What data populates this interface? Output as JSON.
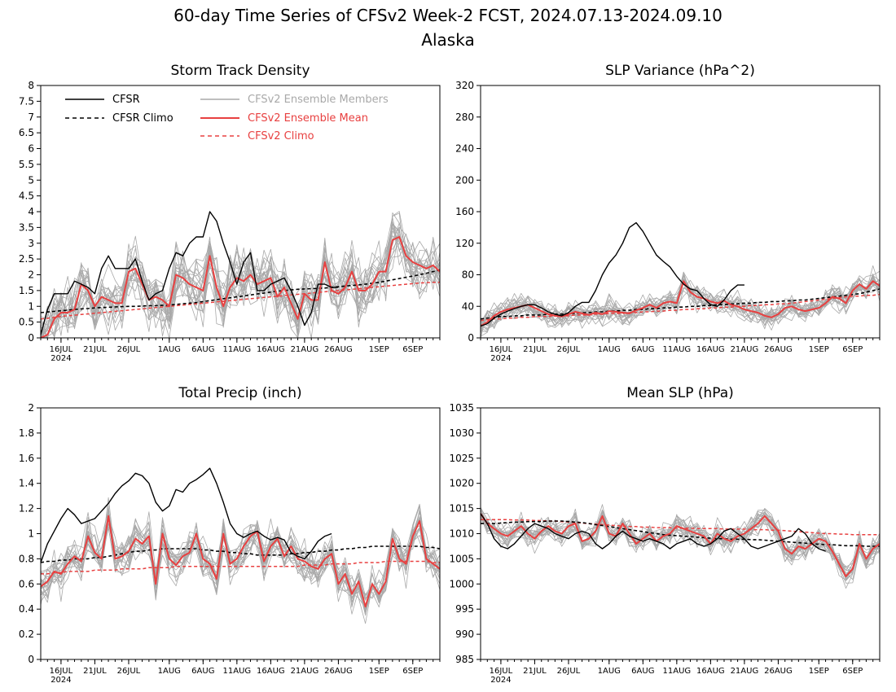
{
  "figure": {
    "title": "60-day Time Series of CFSv2 Week-2 FCST, 2024.07.13-2024.09.10",
    "region": "Alaska"
  },
  "colors": {
    "cfsr": "#000000",
    "ensemble_members": "#a9a9a9",
    "ensemble_mean": "#e84040",
    "cfsv2_climo": "#e84040"
  },
  "legend": {
    "cfsr": "CFSR",
    "cfsr_climo": "CFSR Climo",
    "members": "CFSv2 Ensemble Members",
    "mean": "CFSv2 Ensemble Mean",
    "cfsv2_climo": "CFSv2 Climo"
  },
  "x_axis": {
    "tick_labels": [
      "16JUL",
      "21JUL",
      "26JUL",
      "1AUG",
      "6AUG",
      "11AUG",
      "16AUG",
      "21AUG",
      "26AUG",
      "1SEP",
      "6SEP"
    ],
    "tick_days": [
      3,
      8,
      13,
      19,
      24,
      29,
      34,
      39,
      44,
      50,
      55
    ],
    "year_label": "2024"
  },
  "chart_data": [
    {
      "type": "line",
      "title": "Storm Track Density",
      "ylim": [
        0,
        8
      ],
      "yticks": [
        "0",
        "0.5",
        "1",
        "1.5",
        "2",
        "2.5",
        "3",
        "3.5",
        "4",
        "4.5",
        "5",
        "5.5",
        "6",
        "6.5",
        "7",
        "7.5",
        "8"
      ],
      "cfsr": [
        0.1,
        0.9,
        1.4,
        1.4,
        1.4,
        1.8,
        1.7,
        1.6,
        1.4,
        2.2,
        2.6,
        2.2,
        2.2,
        2.2,
        2.5,
        1.8,
        1.2,
        1.4,
        1.5,
        2.2,
        2.7,
        2.6,
        3.0,
        3.2,
        3.2,
        4.0,
        3.7,
        3.0,
        2.4,
        1.7,
        2.4,
        2.7,
        1.5,
        1.5,
        1.7,
        1.8,
        1.9,
        1.5,
        1.0,
        0.4,
        0.8,
        1.7,
        1.7,
        1.6,
        1.6
      ],
      "cfsr_climo": [
        0.8,
        0.82,
        0.84,
        0.86,
        0.88,
        0.9,
        0.92,
        0.93,
        0.95,
        0.96,
        0.97,
        0.98,
        0.99,
        1.0,
        1.0,
        1.01,
        1.02,
        1.02,
        1.03,
        1.04,
        1.06,
        1.08,
        1.1,
        1.12,
        1.15,
        1.18,
        1.21,
        1.24,
        1.27,
        1.3,
        1.33,
        1.36,
        1.39,
        1.42,
        1.45,
        1.48,
        1.5,
        1.52,
        1.54,
        1.55,
        1.56,
        1.57,
        1.58,
        1.6,
        1.62,
        1.64,
        1.66,
        1.68,
        1.7,
        1.73,
        1.76,
        1.8,
        1.84,
        1.88,
        1.92,
        1.96,
        2.0,
        2.05,
        2.1,
        2.15
      ],
      "ens_mean": [
        0.0,
        0.1,
        0.6,
        0.8,
        0.8,
        0.9,
        1.7,
        1.5,
        1.0,
        1.3,
        1.2,
        1.1,
        1.1,
        2.1,
        2.2,
        1.7,
        1.2,
        1.3,
        1.2,
        1.0,
        2.0,
        1.9,
        1.7,
        1.6,
        1.5,
        2.6,
        1.6,
        1.0,
        1.6,
        1.9,
        1.8,
        2.0,
        1.7,
        1.8,
        1.9,
        1.3,
        1.6,
        1.1,
        0.6,
        1.4,
        1.2,
        1.2,
        2.4,
        1.5,
        1.4,
        1.6,
        2.1,
        1.5,
        1.5,
        1.7,
        2.1,
        2.1,
        3.1,
        3.2,
        2.6,
        2.4,
        2.3,
        2.2,
        2.3,
        2.1
      ],
      "cfsv2_climo": [
        0.6,
        0.62,
        0.65,
        0.68,
        0.7,
        0.72,
        0.74,
        0.76,
        0.78,
        0.8,
        0.82,
        0.84,
        0.86,
        0.88,
        0.9,
        0.92,
        0.94,
        0.96,
        0.98,
        1.0,
        1.02,
        1.04,
        1.06,
        1.08,
        1.1,
        1.12,
        1.14,
        1.16,
        1.18,
        1.2,
        1.22,
        1.24,
        1.26,
        1.28,
        1.3,
        1.32,
        1.34,
        1.36,
        1.38,
        1.4,
        1.42,
        1.44,
        1.46,
        1.48,
        1.5,
        1.52,
        1.54,
        1.56,
        1.58,
        1.6,
        1.62,
        1.64,
        1.66,
        1.68,
        1.7,
        1.72,
        1.74,
        1.75,
        1.76,
        1.76
      ]
    },
    {
      "type": "line",
      "title": "SLP Variance (hPa^2)",
      "ylim": [
        0,
        320
      ],
      "yticks": [
        "0",
        "40",
        "80",
        "120",
        "160",
        "200",
        "240",
        "280",
        "320"
      ],
      "cfsr": [
        15,
        18,
        25,
        30,
        34,
        37,
        40,
        42,
        42,
        38,
        33,
        30,
        28,
        32,
        40,
        45,
        45,
        60,
        80,
        95,
        105,
        120,
        140,
        146,
        135,
        120,
        105,
        97,
        90,
        78,
        68,
        62,
        60,
        50,
        42,
        40,
        48,
        60,
        67,
        67
      ],
      "cfsr_climo": [
        24,
        25,
        26,
        27,
        27,
        28,
        28,
        29,
        29,
        29,
        30,
        30,
        30,
        31,
        31,
        32,
        32,
        33,
        33,
        34,
        34,
        35,
        35,
        36,
        36,
        37,
        37,
        38,
        38,
        39,
        39,
        40,
        40,
        41,
        41,
        42,
        42,
        43,
        43,
        44,
        44,
        45,
        45,
        46,
        46,
        47,
        47,
        48,
        48,
        49,
        50,
        51,
        52,
        53,
        54,
        55,
        56,
        58,
        60,
        62
      ],
      "ens_mean": [
        15,
        20,
        28,
        33,
        36,
        38,
        40,
        42,
        38,
        34,
        30,
        28,
        27,
        30,
        33,
        31,
        29,
        32,
        30,
        34,
        33,
        32,
        31,
        35,
        38,
        42,
        38,
        44,
        46,
        44,
        72,
        58,
        52,
        50,
        46,
        44,
        47,
        42,
        40,
        36,
        34,
        32,
        28,
        26,
        30,
        38,
        40,
        36,
        34,
        36,
        38,
        44,
        52,
        50,
        44,
        60,
        68,
        62,
        72,
        66
      ],
      "cfsv2_climo": [
        22,
        23,
        24,
        24,
        25,
        25,
        26,
        26,
        27,
        27,
        27,
        28,
        28,
        28,
        29,
        29,
        29,
        30,
        30,
        31,
        31,
        31,
        32,
        32,
        33,
        33,
        34,
        34,
        35,
        35,
        36,
        36,
        37,
        37,
        38,
        38,
        39,
        39,
        40,
        40,
        41,
        41,
        42,
        42,
        43,
        43,
        44,
        45,
        46,
        47,
        48,
        49,
        50,
        51,
        52,
        53,
        53,
        54,
        54,
        55
      ]
    },
    {
      "type": "line",
      "title": "Total Precip (inch)",
      "ylim": [
        0,
        2
      ],
      "yticks": [
        "0",
        "0.2",
        "0.4",
        "0.6",
        "0.8",
        "1",
        "1.2",
        "1.4",
        "1.6",
        "1.8",
        "2"
      ],
      "cfsr": [
        0.77,
        0.92,
        1.02,
        1.12,
        1.2,
        1.15,
        1.08,
        1.1,
        1.12,
        1.18,
        1.24,
        1.32,
        1.38,
        1.42,
        1.48,
        1.46,
        1.4,
        1.25,
        1.18,
        1.22,
        1.35,
        1.33,
        1.4,
        1.43,
        1.47,
        1.52,
        1.4,
        1.25,
        1.08,
        1.0,
        0.97,
        1.0,
        1.02,
        0.98,
        0.95,
        0.97,
        0.95,
        0.85,
        0.82,
        0.8,
        0.86,
        0.94,
        0.98,
        1.0
      ],
      "cfsr_climo": [
        0.77,
        0.78,
        0.78,
        0.79,
        0.79,
        0.8,
        0.8,
        0.8,
        0.81,
        0.81,
        0.82,
        0.83,
        0.84,
        0.85,
        0.86,
        0.86,
        0.87,
        0.87,
        0.88,
        0.88,
        0.88,
        0.88,
        0.88,
        0.88,
        0.87,
        0.87,
        0.86,
        0.86,
        0.85,
        0.85,
        0.84,
        0.84,
        0.83,
        0.83,
        0.83,
        0.83,
        0.83,
        0.84,
        0.84,
        0.85,
        0.85,
        0.86,
        0.86,
        0.87,
        0.87,
        0.88,
        0.88,
        0.89,
        0.89,
        0.9,
        0.9,
        0.9,
        0.9,
        0.9,
        0.9,
        0.9,
        0.9,
        0.89,
        0.89,
        0.88
      ],
      "ens_mean": [
        0.58,
        0.62,
        0.7,
        0.68,
        0.76,
        0.82,
        0.78,
        0.98,
        0.85,
        0.8,
        1.14,
        0.8,
        0.82,
        0.86,
        0.96,
        0.92,
        0.98,
        0.6,
        1.0,
        0.8,
        0.75,
        0.82,
        0.85,
        1.0,
        0.8,
        0.76,
        0.64,
        1.0,
        0.76,
        0.8,
        0.9,
        0.98,
        1.02,
        0.78,
        0.9,
        0.96,
        0.82,
        0.9,
        0.8,
        0.78,
        0.74,
        0.72,
        0.8,
        0.84,
        0.6,
        0.68,
        0.52,
        0.62,
        0.42,
        0.6,
        0.52,
        0.62,
        0.96,
        0.8,
        0.76,
        0.98,
        1.1,
        0.8,
        0.76,
        0.72
      ],
      "cfsv2_climo": [
        0.68,
        0.68,
        0.69,
        0.69,
        0.7,
        0.7,
        0.7,
        0.7,
        0.71,
        0.71,
        0.71,
        0.71,
        0.72,
        0.72,
        0.72,
        0.72,
        0.73,
        0.73,
        0.73,
        0.73,
        0.74,
        0.74,
        0.74,
        0.74,
        0.74,
        0.74,
        0.74,
        0.74,
        0.74,
        0.74,
        0.74,
        0.74,
        0.74,
        0.74,
        0.74,
        0.74,
        0.74,
        0.74,
        0.74,
        0.75,
        0.75,
        0.75,
        0.75,
        0.76,
        0.76,
        0.76,
        0.76,
        0.77,
        0.77,
        0.77,
        0.77,
        0.78,
        0.78,
        0.78,
        0.78,
        0.78,
        0.78,
        0.78,
        0.77,
        0.77
      ]
    },
    {
      "type": "line",
      "title": "Mean SLP (hPa)",
      "ylim": [
        985,
        1035
      ],
      "yticks": [
        "985",
        "990",
        "995",
        "1000",
        "1005",
        "1010",
        "1015",
        "1020",
        "1025",
        "1030",
        "1035"
      ],
      "cfsr": [
        1014,
        1012,
        1009,
        1007.5,
        1007,
        1008,
        1009.5,
        1011,
        1012,
        1011.5,
        1011,
        1010,
        1009.5,
        1009,
        1010,
        1010.5,
        1010,
        1008,
        1007,
        1008,
        1009.5,
        1010.5,
        1009.5,
        1009,
        1008.5,
        1009,
        1008.5,
        1008,
        1007,
        1008,
        1008.5,
        1009,
        1008,
        1007.5,
        1008,
        1009,
        1010.5,
        1011,
        1010,
        1009,
        1007.5,
        1007,
        1007.5,
        1008,
        1008.5,
        1009,
        1009.5,
        1011,
        1010,
        1008,
        1007,
        1006.5
      ],
      "cfsr_climo": [
        1012,
        1012,
        1012,
        1012.1,
        1012.2,
        1012.3,
        1012.3,
        1012.4,
        1012.4,
        1012.4,
        1012.5,
        1012.5,
        1012.5,
        1012.4,
        1012.3,
        1012.2,
        1012,
        1011.8,
        1011.6,
        1011.4,
        1011.2,
        1011,
        1010.8,
        1010.6,
        1010.4,
        1010.2,
        1010,
        1009.8,
        1009.7,
        1009.6,
        1009.5,
        1009.4,
        1009.3,
        1009.2,
        1009.1,
        1009,
        1009,
        1008.9,
        1008.9,
        1008.9,
        1008.8,
        1008.8,
        1008.7,
        1008.6,
        1008.5,
        1008.4,
        1008.3,
        1008.2,
        1008.1,
        1008,
        1007.9,
        1007.8,
        1007.8,
        1007.7,
        1007.6,
        1007.6,
        1007.6,
        1007.5,
        1007.5,
        1007.5
      ],
      "ens_mean": [
        1014,
        1012,
        1011,
        1010,
        1009.5,
        1010.5,
        1011.5,
        1010,
        1009,
        1010.5,
        1011.5,
        1010.5,
        1010,
        1011.5,
        1012,
        1008.5,
        1009,
        1010.5,
        1013.5,
        1010,
        1009.5,
        1012,
        1010,
        1008,
        1009,
        1010,
        1008.5,
        1009.5,
        1010,
        1011.5,
        1011,
        1010.5,
        1010,
        1009.5,
        1008,
        1010,
        1009,
        1008.5,
        1009.5,
        1010,
        1011,
        1012,
        1013.5,
        1012,
        1010.5,
        1007,
        1006,
        1007.5,
        1007,
        1008,
        1009,
        1008.5,
        1006.5,
        1004,
        1001.5,
        1003,
        1008,
        1005,
        1007,
        1008
      ],
      "cfsv2_climo": [
        1012.8,
        1012.8,
        1012.8,
        1012.8,
        1012.8,
        1012.7,
        1012.7,
        1012.7,
        1012.6,
        1012.6,
        1012.5,
        1012.5,
        1012.4,
        1012.3,
        1012.2,
        1012.1,
        1012,
        1011.9,
        1011.8,
        1011.7,
        1011.6,
        1011.5,
        1011.4,
        1011.4,
        1011.3,
        1011.3,
        1011.2,
        1011.2,
        1011.2,
        1011.1,
        1011.1,
        1011.1,
        1011,
        1011,
        1011,
        1011,
        1010.9,
        1010.9,
        1010.9,
        1010.9,
        1010.8,
        1010.8,
        1010.8,
        1010.7,
        1010.7,
        1010.6,
        1010.5,
        1010.4,
        1010.3,
        1010.2,
        1010.1,
        1010,
        1010,
        1009.9,
        1009.9,
        1009.8,
        1009.8,
        1009.8,
        1009.8,
        1009.8
      ]
    }
  ]
}
